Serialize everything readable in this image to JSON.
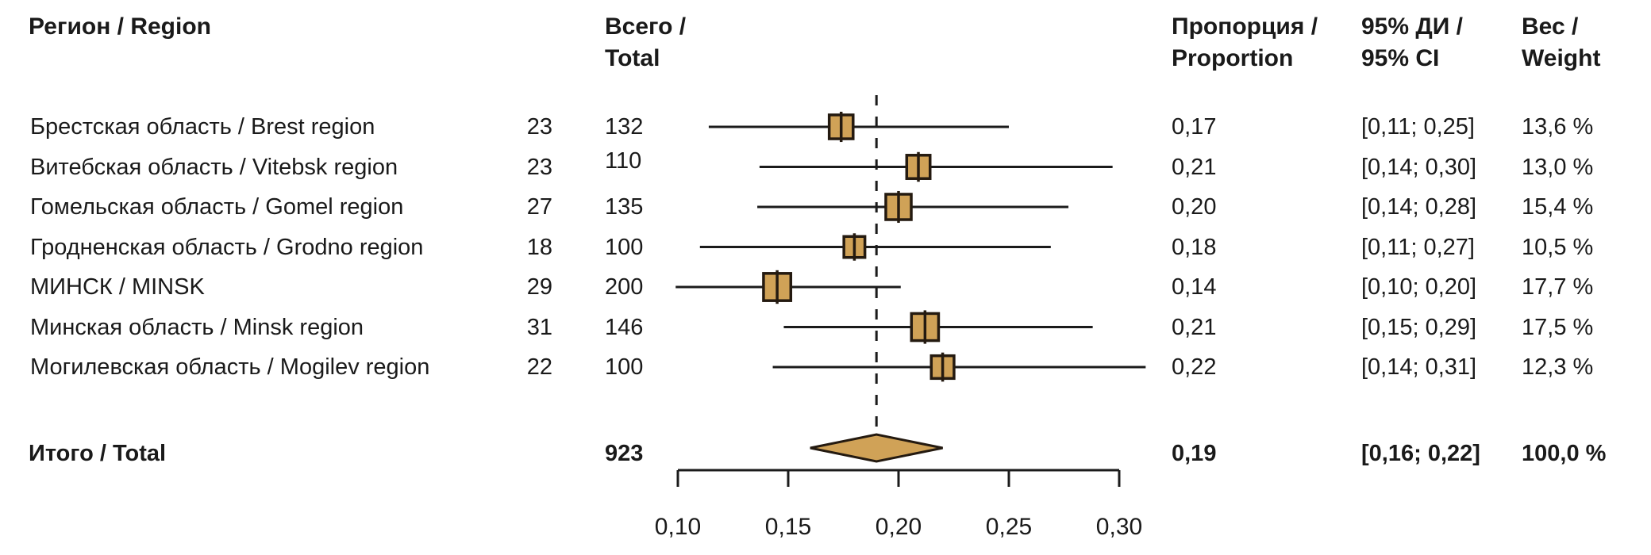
{
  "header": {
    "region": "Регион / Region",
    "total_line1": "Всего /",
    "total_line2": "Total",
    "proportion_line1": "Пропорция /",
    "proportion_line2": "Proportion",
    "ci_line1": "95% ДИ /",
    "ci_line2": "95% CI",
    "weight_line1": "Вес /",
    "weight_line2": "Weight"
  },
  "rows": [
    {
      "label": "Брестская область / Brest region",
      "events": "23",
      "total": "132",
      "proportion": "0,17",
      "ci": "[0,11; 0,25]",
      "weight": "13,6 %"
    },
    {
      "label": "Витебская область / Vitebsk region",
      "events": "23",
      "total": "110",
      "proportion": "0,21",
      "ci": "[0,14; 0,30]",
      "weight": "13,0 %"
    },
    {
      "label": "Гомельская область / Gomel region",
      "events": "27",
      "total": "135",
      "proportion": "0,20",
      "ci": "[0,14; 0,28]",
      "weight": "15,4 %"
    },
    {
      "label": "Гродненская область / Grodno region",
      "events": "18",
      "total": "100",
      "proportion": "0,18",
      "ci": "[0,11; 0,27]",
      "weight": "10,5 %"
    },
    {
      "label": "МИНСК / MINSK",
      "events": "29",
      "total": "200",
      "proportion": "0,14",
      "ci": "[0,10; 0,20]",
      "weight": "17,7 %"
    },
    {
      "label": "Минская область / Minsk region",
      "events": "31",
      "total": "146",
      "proportion": "0,21",
      "ci": "[0,15; 0,29]",
      "weight": "17,5 %"
    },
    {
      "label": "Могилевская область / Mogilev region",
      "events": "22",
      "total": "100",
      "proportion": "0,22",
      "ci": "[0,14; 0,31]",
      "weight": "12,3 %"
    }
  ],
  "total_row": {
    "label": "Итого / Total",
    "total": "923",
    "proportion": "0,19",
    "ci": "[0,16; 0,22]",
    "weight": "100,0 %"
  },
  "chart_data": {
    "type": "forest",
    "title": "",
    "xlabel": "",
    "xlim": [
      0.1,
      0.3
    ],
    "ticks": [
      0.1,
      0.15,
      0.2,
      0.25,
      0.3
    ],
    "tick_labels": [
      "0,10",
      "0,15",
      "0,20",
      "0,25",
      "0,30"
    ],
    "reference_line": 0.19,
    "studies": [
      {
        "name": "Брестская область / Brest region",
        "events": 23,
        "n": 132,
        "proportion": 0.174,
        "ci_low": 0.114,
        "ci_high": 0.25,
        "weight_pct": 13.6
      },
      {
        "name": "Витебская область / Vitebsk region",
        "events": 23,
        "n": 110,
        "proportion": 0.209,
        "ci_low": 0.137,
        "ci_high": 0.297,
        "weight_pct": 13.0
      },
      {
        "name": "Гомельская область / Gomel region",
        "events": 27,
        "n": 135,
        "proportion": 0.2,
        "ci_low": 0.136,
        "ci_high": 0.277,
        "weight_pct": 15.4
      },
      {
        "name": "Гродненская область / Grodno region",
        "events": 18,
        "n": 100,
        "proportion": 0.18,
        "ci_low": 0.11,
        "ci_high": 0.269,
        "weight_pct": 10.5
      },
      {
        "name": "МИНСК / MINSK",
        "events": 29,
        "n": 200,
        "proportion": 0.145,
        "ci_low": 0.099,
        "ci_high": 0.201,
        "weight_pct": 17.7
      },
      {
        "name": "Минская область / Minsk region",
        "events": 31,
        "n": 146,
        "proportion": 0.212,
        "ci_low": 0.148,
        "ci_high": 0.288,
        "weight_pct": 17.5
      },
      {
        "name": "Могилевская область / Mogilev region",
        "events": 22,
        "n": 100,
        "proportion": 0.22,
        "ci_low": 0.143,
        "ci_high": 0.312,
        "weight_pct": 12.3
      }
    ],
    "pooled": {
      "name": "Итого / Total",
      "n": 923,
      "proportion": 0.19,
      "ci_low": 0.16,
      "ci_high": 0.22,
      "weight_pct": 100.0
    }
  },
  "colors": {
    "marker_fill": "#D0A257",
    "marker_border": "#241A10",
    "line": "#1B1B1B",
    "text": "#1A1A1A"
  }
}
